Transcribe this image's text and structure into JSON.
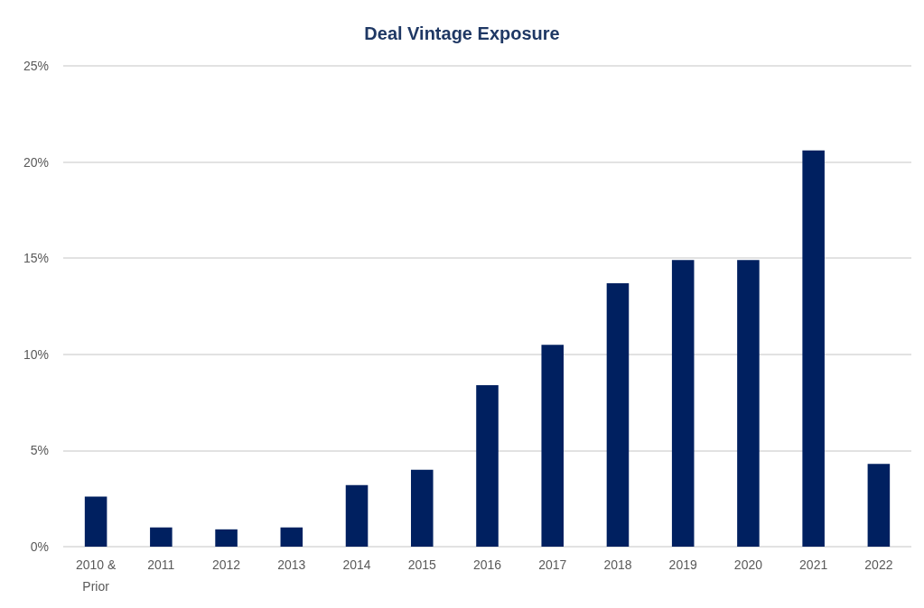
{
  "chart_data": {
    "type": "bar",
    "title": "Deal Vintage Exposure",
    "categories": [
      "2010 & Prior",
      "2011",
      "2012",
      "2013",
      "2014",
      "2015",
      "2016",
      "2017",
      "2018",
      "2019",
      "2020",
      "2021",
      "2022"
    ],
    "values": [
      2.6,
      1.0,
      0.9,
      1.0,
      3.2,
      4.0,
      8.4,
      10.5,
      13.7,
      14.9,
      14.9,
      20.6,
      4.3
    ],
    "color": "#002060",
    "ylim": [
      0,
      25
    ],
    "yticks": [
      {
        "value": 0,
        "label": "0%"
      },
      {
        "value": 5,
        "label": "5%"
      },
      {
        "value": 10,
        "label": "10%"
      },
      {
        "value": 15,
        "label": "15%"
      },
      {
        "value": 20,
        "label": "20%"
      },
      {
        "value": 25,
        "label": "25%"
      }
    ],
    "grid": true
  }
}
